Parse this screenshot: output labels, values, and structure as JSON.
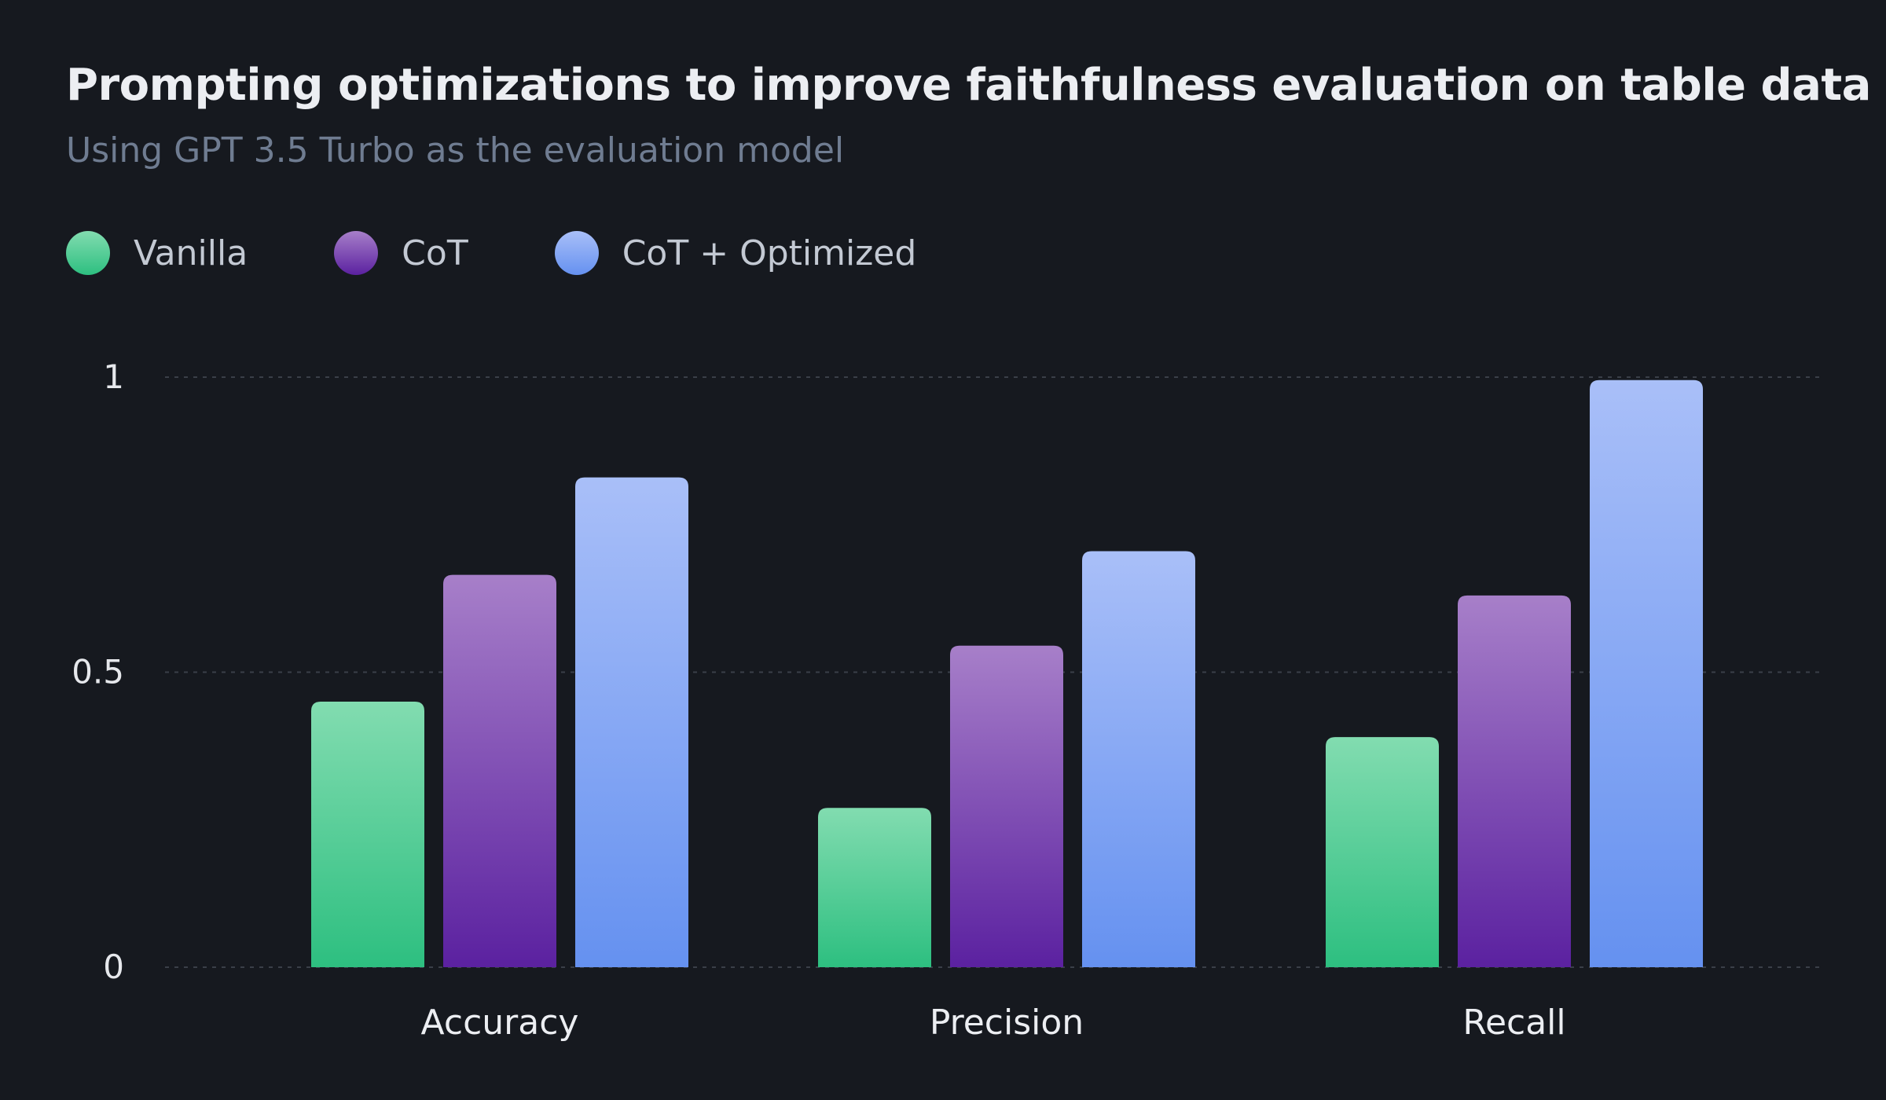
{
  "chart_data": {
    "type": "bar",
    "title": "Prompting optimizations to improve faithfulness evaluation on table data",
    "subtitle": "Using GPT 3.5 Turbo as the evaluation model",
    "categories": [
      "Accuracy",
      "Precision",
      "Recall"
    ],
    "series": [
      {
        "name": "Vanilla",
        "values": [
          0.45,
          0.27,
          0.39
        ],
        "color_top": "#82dcb0",
        "color_bottom": "#2dbf80"
      },
      {
        "name": "CoT",
        "values": [
          0.665,
          0.545,
          0.63
        ],
        "color_top": "#a77fc9",
        "color_bottom": "#5b21a0"
      },
      {
        "name": "CoT + Optimized",
        "values": [
          0.83,
          0.705,
          0.995
        ],
        "color_top": "#a9bff8",
        "color_bottom": "#6591f0"
      }
    ],
    "ylim": [
      0,
      1
    ],
    "yticks": [
      0,
      0.5,
      1
    ],
    "ytick_labels": [
      "0",
      "0.5",
      "1"
    ],
    "xlabel": "",
    "ylabel": "",
    "grid": true,
    "legend_position": "top-left"
  },
  "colors": {
    "background": "#16191f",
    "gridline": "#3a3f48"
  }
}
